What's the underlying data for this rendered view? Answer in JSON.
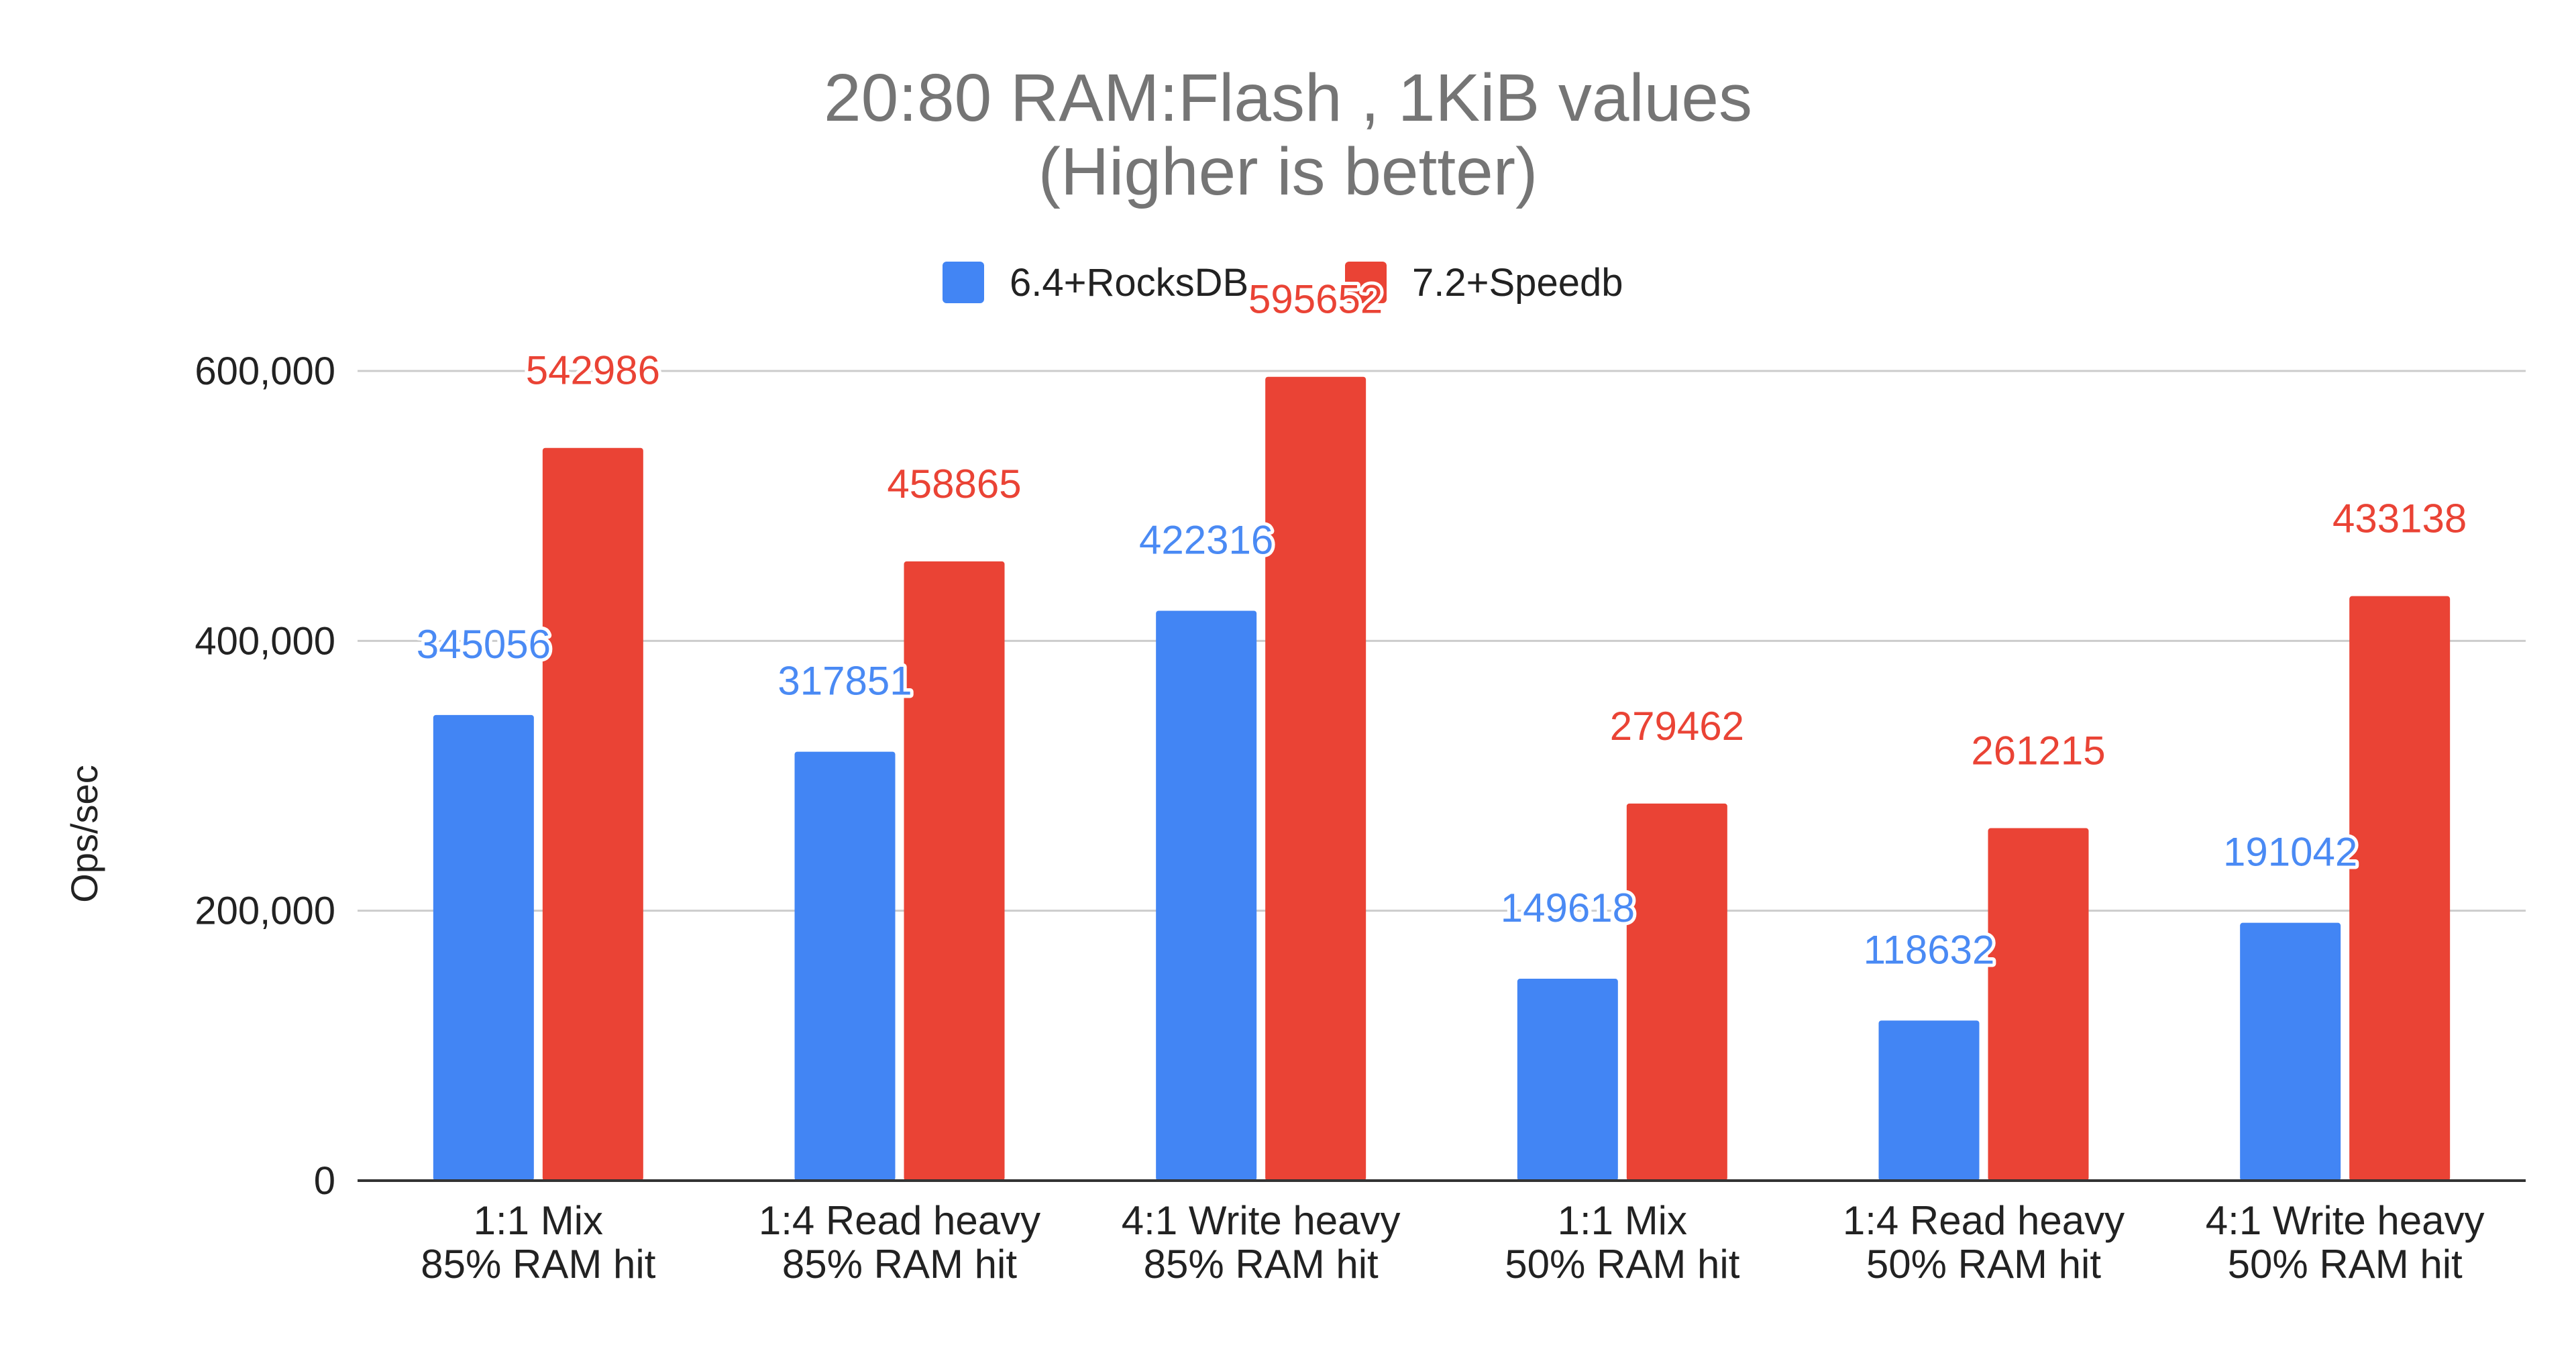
{
  "chart_data": {
    "type": "bar",
    "title": [
      "20:80 RAM:Flash , 1KiB values",
      "(Higher is better)"
    ],
    "xlabel": "",
    "ylabel": "Ops/sec",
    "ylim": [
      0,
      600000
    ],
    "yticks": [
      "0",
      "200,000",
      "400,000",
      "600,000"
    ],
    "ytick_values": [
      0,
      200000,
      400000,
      600000
    ],
    "grid": true,
    "legend_position": "top-center",
    "categories": [
      [
        "1:1 Mix",
        "85% RAM hit"
      ],
      [
        "1:4 Read heavy",
        "85% RAM hit"
      ],
      [
        "4:1 Write heavy",
        "85% RAM hit"
      ],
      [
        "1:1 Mix",
        "50% RAM hit"
      ],
      [
        "1:4 Read heavy",
        "50% RAM hit"
      ],
      [
        "4:1 Write heavy",
        "50% RAM hit"
      ]
    ],
    "series": [
      {
        "name": "6.4+RocksDB",
        "color": "#4285f4",
        "label_color": "#4a8af4",
        "values": [
          345056,
          317851,
          422316,
          149618,
          118632,
          191042
        ]
      },
      {
        "name": "7.2+Speedb",
        "color": "#ea4335",
        "label_color": "#ea4335",
        "values": [
          542986,
          458865,
          595652,
          279462,
          261215,
          433138
        ]
      }
    ]
  },
  "colors": {
    "grid": "#cccccc",
    "axis": "#333333",
    "title": "#757575"
  }
}
